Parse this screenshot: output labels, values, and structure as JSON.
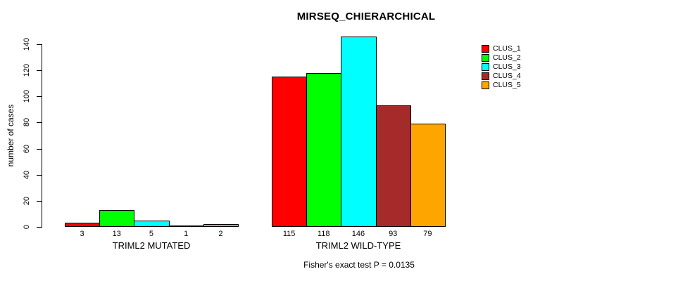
{
  "chart_data": {
    "type": "bar",
    "title": "MIRSEQ_CHIERARCHICAL",
    "xlabel": "",
    "ylabel": "number of cases",
    "ylim": [
      0,
      140
    ],
    "yticks": [
      0,
      20,
      40,
      60,
      80,
      100,
      120,
      140
    ],
    "grid": false,
    "categories": [
      "TRIML2 MUTATED",
      "TRIML2 WILD-TYPE"
    ],
    "series": [
      {
        "name": "CLUS_1",
        "color": "#FF0000",
        "values": [
          3,
          115
        ]
      },
      {
        "name": "CLUS_2",
        "color": "#00FF00",
        "values": [
          13,
          118
        ]
      },
      {
        "name": "CLUS_3",
        "color": "#00FFFF",
        "values": [
          5,
          146
        ]
      },
      {
        "name": "CLUS_4",
        "color": "#A52A2A",
        "values": [
          1,
          93
        ]
      },
      {
        "name": "CLUS_5",
        "color": "#FFA500",
        "values": [
          2,
          79
        ]
      }
    ],
    "bar_value_labels": [
      [
        "3",
        "13",
        "5",
        "1",
        "2"
      ],
      [
        "115",
        "118",
        "146",
        "93",
        "79"
      ]
    ],
    "legend": [
      "CLUS_1",
      "CLUS_2",
      "CLUS_3",
      "CLUS_4",
      "CLUS_5"
    ],
    "legend_position": "top-right",
    "annotation": "Fisher's exact test P = 0.0135"
  }
}
